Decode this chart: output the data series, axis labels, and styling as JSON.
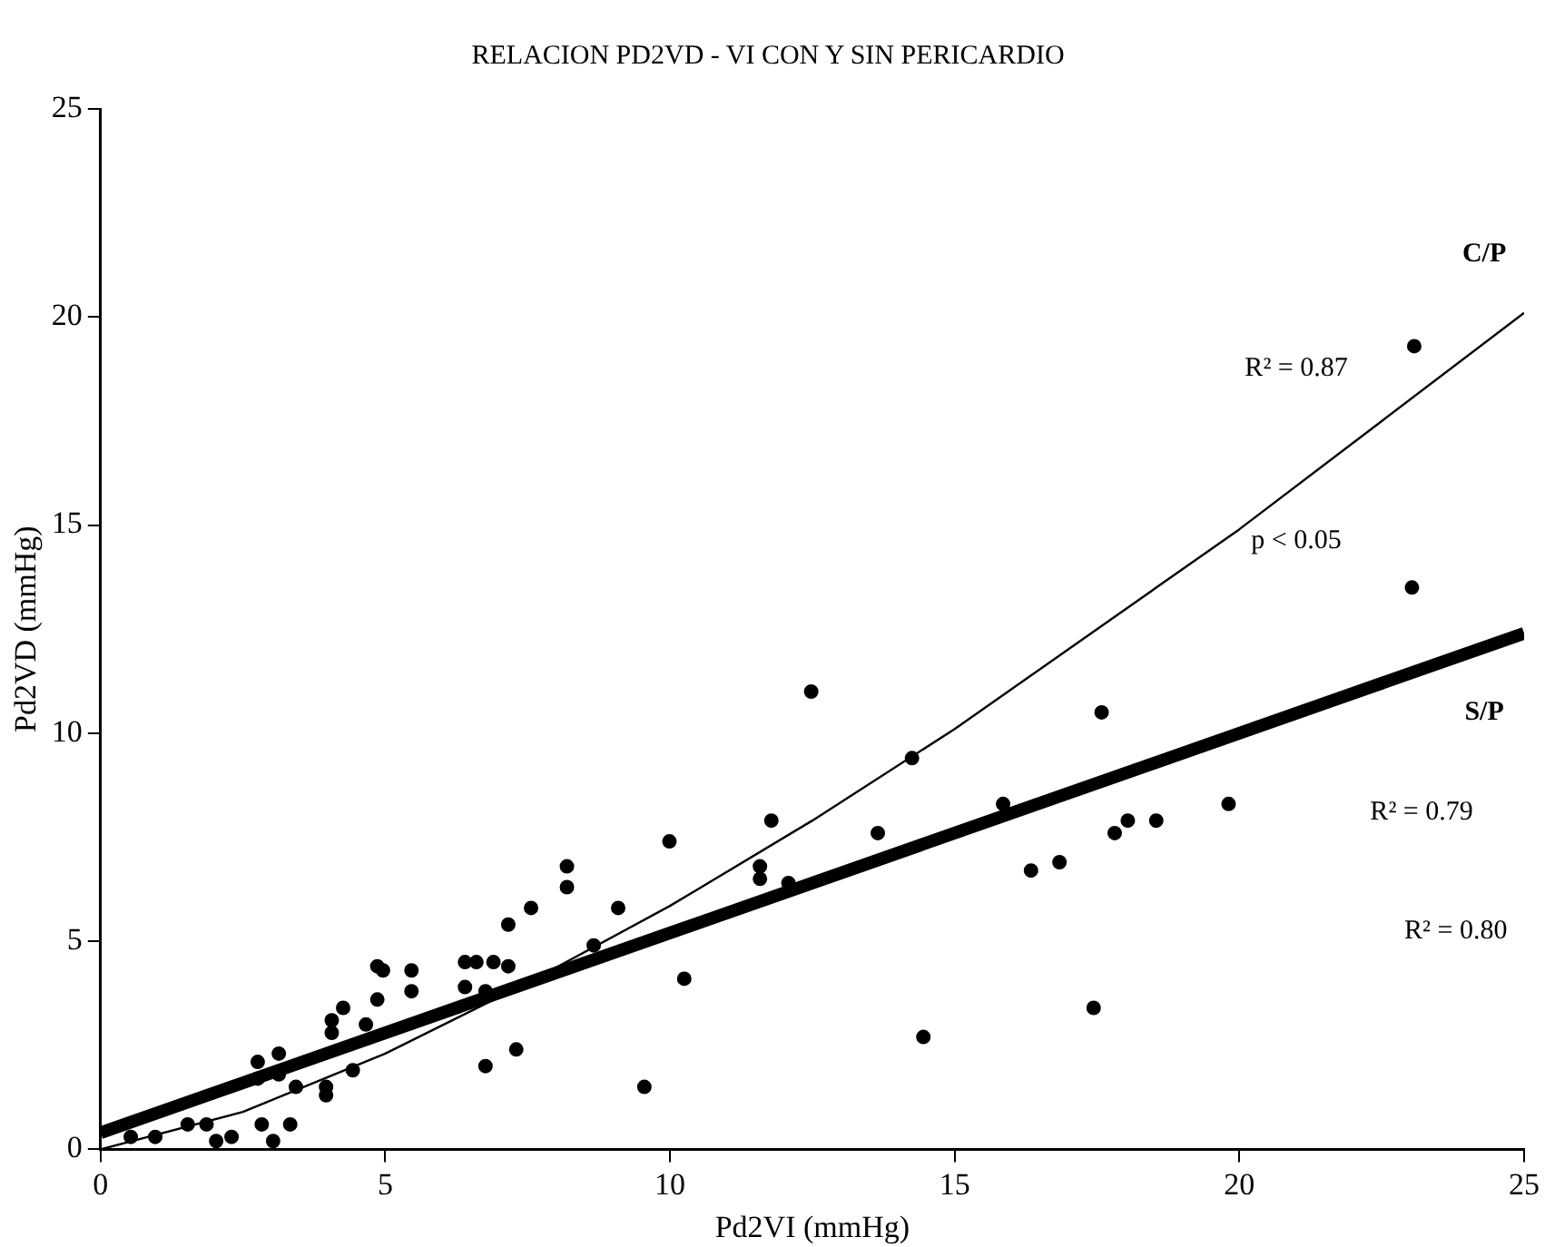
{
  "chart_data": {
    "type": "scatter",
    "title": "RELACION PD2VD - VI CON Y SIN PERICARDIO",
    "xlabel": "Pd2VI (mmHg)",
    "ylabel": "Pd2VD (mmHg)",
    "xlim": [
      0,
      25
    ],
    "xticks": [
      0,
      5,
      10,
      15,
      20,
      25
    ],
    "ylim": [
      0,
      25
    ],
    "yticks": [
      0,
      5,
      10,
      15,
      20,
      25
    ],
    "grid": false,
    "legend": false,
    "series": [
      {
        "color": "#000000",
        "marker": "circle",
        "x": [
          0.53,
          0.96,
          1.53,
          1.86,
          2.03,
          2.3,
          2.76,
          2.76,
          2.83,
          3.03,
          3.13,
          3.13,
          3.33,
          3.43,
          3.96,
          3.96,
          4.06,
          4.06,
          4.26,
          4.43,
          4.66,
          4.86,
          4.86,
          4.96,
          5.46,
          5.46,
          6.4,
          6.4,
          6.6,
          6.76,
          6.76,
          6.9,
          7.16,
          7.16,
          7.3,
          7.56,
          8.19,
          8.19,
          8.66,
          9.09,
          9.55,
          9.99,
          10.25,
          11.58,
          11.58,
          11.78,
          12.08,
          12.48,
          13.65,
          14.25,
          14.45,
          15.85,
          16.34,
          16.84,
          17.44,
          17.58,
          17.81,
          18.04,
          18.54,
          19.81,
          23.03,
          23.07
        ],
        "values": [
          0.3,
          0.3,
          0.6,
          0.6,
          0.2,
          0.3,
          2.1,
          1.7,
          0.6,
          0.2,
          2.3,
          1.8,
          0.6,
          1.5,
          1.5,
          1.3,
          3.1,
          2.8,
          3.4,
          1.9,
          3.0,
          4.4,
          3.6,
          4.3,
          4.3,
          3.8,
          4.5,
          3.9,
          4.5,
          3.8,
          2.0,
          4.5,
          5.4,
          4.4,
          2.4,
          5.8,
          6.8,
          6.3,
          4.9,
          5.8,
          1.5,
          7.4,
          4.1,
          6.8,
          6.5,
          7.9,
          6.4,
          11.0,
          7.6,
          9.4,
          2.7,
          8.3,
          6.7,
          6.9,
          3.4,
          10.5,
          7.6,
          7.9,
          7.9,
          8.3,
          13.5,
          19.3
        ]
      },
      {
        "type": "line",
        "color": "#000000",
        "line_style": "solid",
        "marker": "none",
        "x": [
          0,
          2.5,
          5,
          7.5,
          10,
          12.5,
          15,
          17.5,
          20,
          22.5,
          25
        ],
        "values": [
          0,
          0.9,
          2.3,
          4.0,
          5.85,
          7.9,
          10.1,
          12.5,
          14.9,
          17.5,
          20.1
        ]
      },
      {
        "type": "line",
        "color": "#000000",
        "line_style": "solid",
        "marker": "none",
        "x": [
          0,
          25
        ],
        "values": [
          0.4,
          12.4
        ]
      }
    ],
    "annotations": [
      "C/P",
      "R² = 0.87",
      "p < 0.05",
      "S/P",
      "R² = 0.79",
      "R² = 0.80"
    ]
  }
}
